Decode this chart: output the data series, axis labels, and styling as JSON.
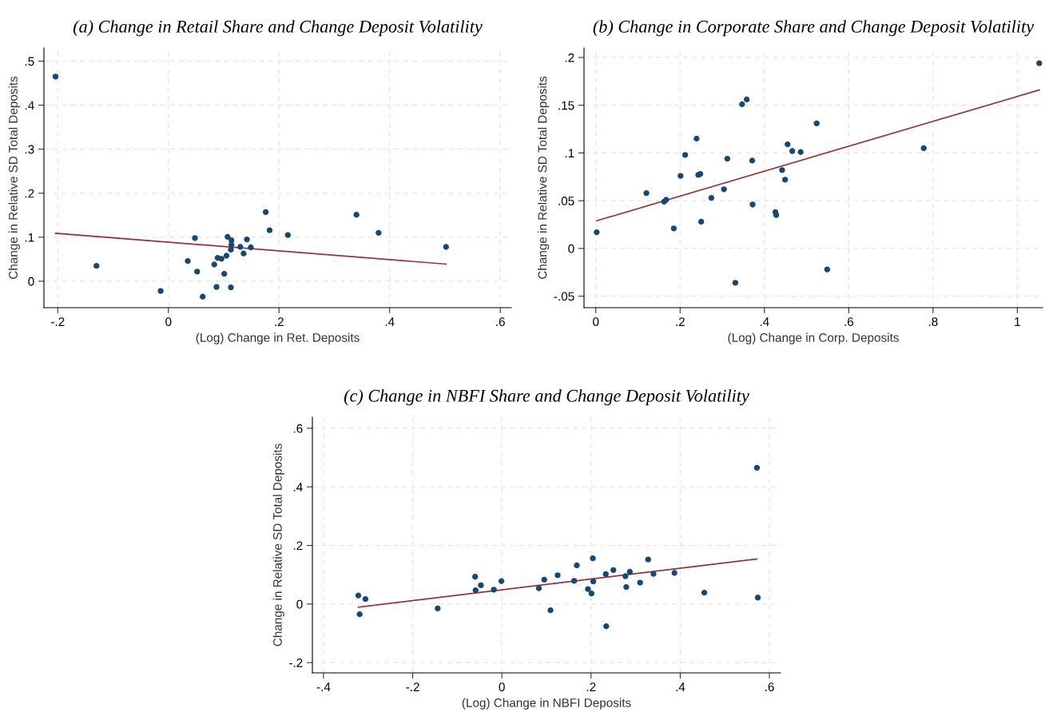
{
  "chart_data": [
    {
      "type": "scatter",
      "title": "(a) Change in Retail Share and Change Deposit Volatility",
      "xlabel": "(Log) Change in Ret. Deposits",
      "ylabel": "Change in Relative SD Total Deposits",
      "xlim": [
        -0.225,
        0.62
      ],
      "ylim": [
        -0.06,
        0.53
      ],
      "xticks": [
        {
          "value": -0.2,
          "label": "-.2"
        },
        0,
        {
          "value": 0.2,
          "label": ".2"
        },
        {
          "value": 0.4,
          "label": ".4"
        },
        {
          "value": 0.6,
          "label": ".6"
        }
      ],
      "yticks": [
        0,
        {
          "value": 0.1,
          "label": ".1"
        },
        {
          "value": 0.2,
          "label": ".2"
        },
        {
          "value": 0.3,
          "label": ".3"
        },
        {
          "value": 0.4,
          "label": ".4"
        },
        {
          "value": 0.5,
          "label": ".5"
        }
      ],
      "grid": true,
      "series": [
        {
          "marker": "circle",
          "color": "#1a476f",
          "x": [
            -0.204,
            -0.13,
            -0.014,
            0.035,
            0.048,
            0.052,
            0.062,
            0.083,
            0.087,
            0.089,
            0.096,
            0.101,
            0.105,
            0.107,
            0.113,
            0.114,
            0.114,
            0.113,
            0.13,
            0.136,
            0.142,
            0.149,
            0.176,
            0.183,
            0.216,
            0.34,
            0.38,
            0.502
          ],
          "values": [
            0.465,
            0.035,
            -0.022,
            0.046,
            0.098,
            0.022,
            -0.035,
            0.038,
            -0.013,
            0.053,
            0.051,
            0.017,
            0.058,
            0.101,
            -0.014,
            0.093,
            0.083,
            0.072,
            0.078,
            0.063,
            0.095,
            0.077,
            0.157,
            0.116,
            0.105,
            0.151,
            0.11,
            0.078
          ]
        },
        {
          "type": "line",
          "color": "#90353b",
          "x": [
            -0.204,
            0.502
          ],
          "values": [
            0.109,
            0.039
          ]
        }
      ]
    },
    {
      "type": "scatter",
      "title": "(b) Change in Corporate Share and Change Deposit Volatility",
      "xlabel": "(Log) Change in Corp. Deposits",
      "ylabel": "Change in Relative SD Total Deposits",
      "xlim": [
        -0.028,
        1.06
      ],
      "ylim": [
        -0.062,
        0.21
      ],
      "xticks": [
        0,
        {
          "value": 0.2,
          "label": ".2"
        },
        {
          "value": 0.4,
          "label": ".4"
        },
        {
          "value": 0.6,
          "label": ".6"
        },
        {
          "value": 0.8,
          "label": ".8"
        },
        1
      ],
      "yticks": [
        {
          "value": -0.05,
          "label": "-.05"
        },
        0,
        {
          "value": 0.05,
          "label": ".05"
        },
        {
          "value": 0.1,
          "label": ".1"
        },
        {
          "value": 0.15,
          "label": ".15"
        },
        {
          "value": 0.2,
          "label": ".2"
        }
      ],
      "grid": true,
      "series": [
        {
          "marker": "circle",
          "color": "#1a476f",
          "x": [
            0.002,
            0.12,
            0.162,
            0.167,
            0.185,
            0.201,
            0.212,
            0.239,
            0.243,
            0.248,
            0.25,
            0.274,
            0.304,
            0.312,
            0.331,
            0.347,
            0.358,
            0.371,
            0.372,
            0.426,
            0.428,
            0.442,
            0.449,
            0.455,
            0.466,
            0.486,
            0.524,
            0.549,
            0.778,
            1.052
          ],
          "values": [
            0.017,
            0.058,
            0.049,
            0.051,
            0.021,
            0.076,
            0.098,
            0.115,
            0.077,
            0.078,
            0.028,
            0.053,
            0.062,
            0.094,
            -0.036,
            0.151,
            0.156,
            0.092,
            0.046,
            0.038,
            0.035,
            0.082,
            0.072,
            0.109,
            0.102,
            0.101,
            0.131,
            -0.022,
            0.105,
            0.194
          ]
        },
        {
          "type": "line",
          "color": "#90353b",
          "x": [
            0.002,
            1.052
          ],
          "values": [
            0.029,
            0.166
          ]
        }
      ]
    },
    {
      "type": "scatter",
      "title": "(c) Change in NBFI Share and Change Deposit Volatility",
      "xlabel": "(Log) Change in NBFI Deposits",
      "ylabel": "Change in Relative SD Total Deposits",
      "xlim": [
        -0.425,
        0.625
      ],
      "ylim": [
        -0.235,
        0.638
      ],
      "xticks": [
        {
          "value": -0.4,
          "label": "-.4"
        },
        {
          "value": -0.2,
          "label": "-.2"
        },
        0,
        {
          "value": 0.2,
          "label": ".2"
        },
        {
          "value": 0.4,
          "label": ".4"
        },
        {
          "value": 0.6,
          "label": ".6"
        }
      ],
      "yticks": [
        {
          "value": -0.2,
          "label": "-.2"
        },
        0,
        {
          "value": 0.2,
          "label": ".2"
        },
        {
          "value": 0.4,
          "label": ".4"
        },
        {
          "value": 0.6,
          "label": ".6"
        }
      ],
      "grid": true,
      "series": [
        {
          "marker": "circle",
          "color": "#1a476f",
          "x": [
            -0.322,
            -0.319,
            -0.306,
            -0.144,
            -0.06,
            -0.059,
            -0.047,
            -0.018,
            -0.001,
            0.083,
            0.095,
            0.109,
            0.125,
            0.162,
            0.168,
            0.193,
            0.201,
            0.204,
            0.205,
            0.233,
            0.234,
            0.25,
            0.277,
            0.279,
            0.287,
            0.31,
            0.328,
            0.34,
            0.387,
            0.454,
            0.572,
            0.574
          ],
          "values": [
            0.029,
            -0.035,
            0.017,
            -0.015,
            0.093,
            0.047,
            0.064,
            0.049,
            0.078,
            0.054,
            0.083,
            -0.021,
            0.098,
            0.079,
            0.132,
            0.051,
            0.036,
            0.156,
            0.077,
            0.102,
            -0.076,
            0.116,
            0.095,
            0.058,
            0.11,
            0.073,
            0.152,
            0.103,
            0.106,
            0.039,
            0.465,
            0.022
          ]
        },
        {
          "type": "line",
          "color": "#90353b",
          "x": [
            -0.322,
            0.572
          ],
          "values": [
            -0.011,
            0.154
          ]
        }
      ]
    }
  ]
}
